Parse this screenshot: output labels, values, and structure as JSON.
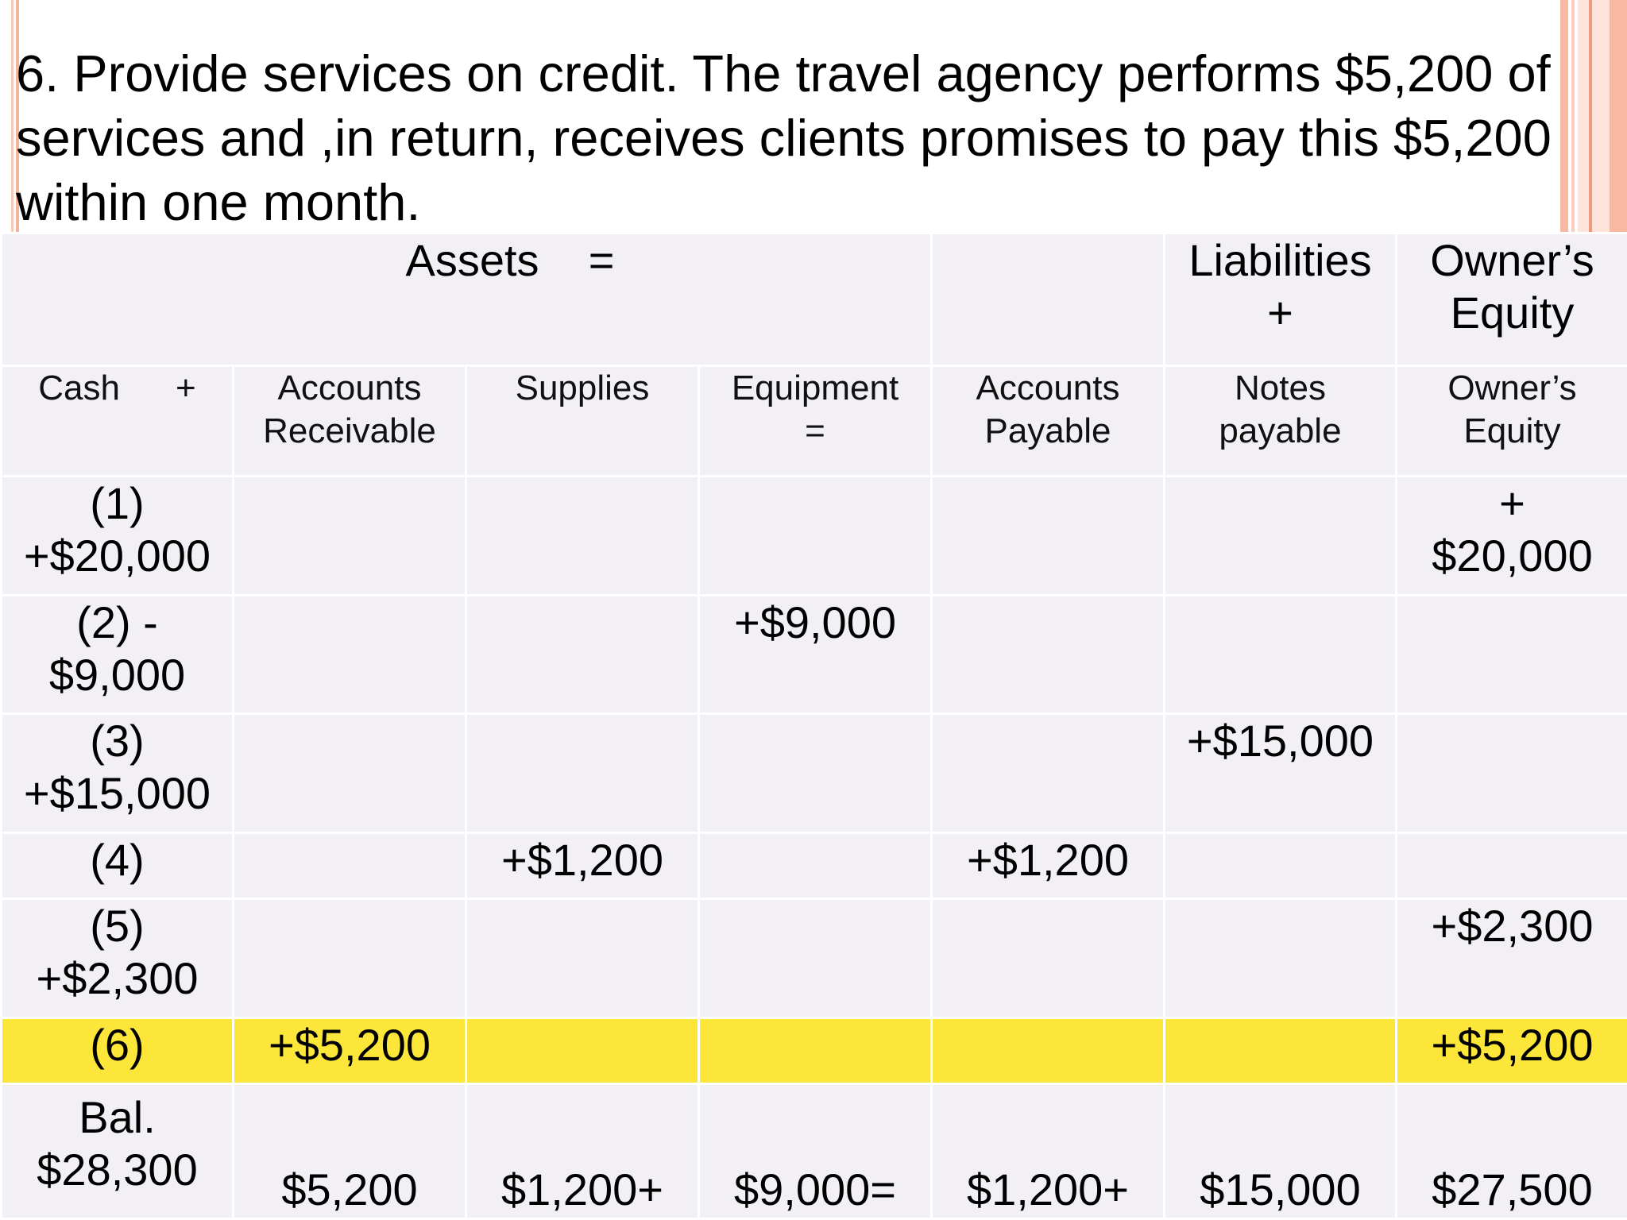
{
  "title": "6. Provide services on credit. The travel agency performs $5,200 of services and ,in return, receives clients promises to pay this $5,200 within one month.",
  "header": {
    "assets": "Assets    =",
    "liabilities_line1": "Liabilities",
    "liabilities_line2": "+",
    "equity_line1": "Owner’s",
    "equity_line2": "Equity"
  },
  "columns": {
    "cash": "Cash",
    "cash_op": "+",
    "ar_line1": "Accounts",
    "ar_line2": "Receivable",
    "supplies": "Supplies",
    "equipment_line1": "Equipment",
    "equipment_line2": "=",
    "ap_line1": "Accounts",
    "ap_line2": "Payable",
    "np_line1": "Notes",
    "np_line2": "payable",
    "oe_line1": "Owner’s",
    "oe_line2": "Equity"
  },
  "rows": [
    {
      "cash_line1": "(1)",
      "cash_line2": "+$20,000",
      "ar": "",
      "supplies": "",
      "equipment": "",
      "ap": "",
      "np": "",
      "oe_line1": "+",
      "oe_line2": "$20,000"
    },
    {
      "cash_line1": "(2) -",
      "cash_line2": "$9,000",
      "ar": "",
      "supplies": "",
      "equipment": "+$9,000",
      "ap": "",
      "np": "",
      "oe_line1": "",
      "oe_line2": ""
    },
    {
      "cash_line1": "(3)",
      "cash_line2": "+$15,000",
      "ar": "",
      "supplies": "",
      "equipment": "",
      "ap": "",
      "np": "+$15,000",
      "oe_line1": "",
      "oe_line2": ""
    },
    {
      "cash_line1": "(4)",
      "cash_line2": "",
      "ar": "",
      "supplies": "+$1,200",
      "equipment": "",
      "ap": "+$1,200",
      "np": "",
      "oe_line1": "",
      "oe_line2": ""
    },
    {
      "cash_line1": "(5)",
      "cash_line2": "+$2,300",
      "ar": "",
      "supplies": "",
      "equipment": "",
      "ap": "",
      "np": "",
      "oe_line1": "+$2,300",
      "oe_line2": ""
    },
    {
      "cash_line1": "(6)",
      "cash_line2": "",
      "ar": "+$5,200",
      "supplies": "",
      "equipment": "",
      "ap": "",
      "np": "",
      "oe_line1": "+$5,200",
      "oe_line2": ""
    }
  ],
  "balance": {
    "cash_line1": "Bal.",
    "cash_line2": "$28,300",
    "ar": "$5,200",
    "supplies": "$1,200+",
    "equipment": "$9,000=",
    "ap": "$1,200+",
    "np": "$15,000",
    "oe": "$27,500"
  },
  "colors": {
    "cell_bg": "#f2f0f5",
    "highlight": "#fde63a",
    "border_accent": "#f7b9a2"
  }
}
